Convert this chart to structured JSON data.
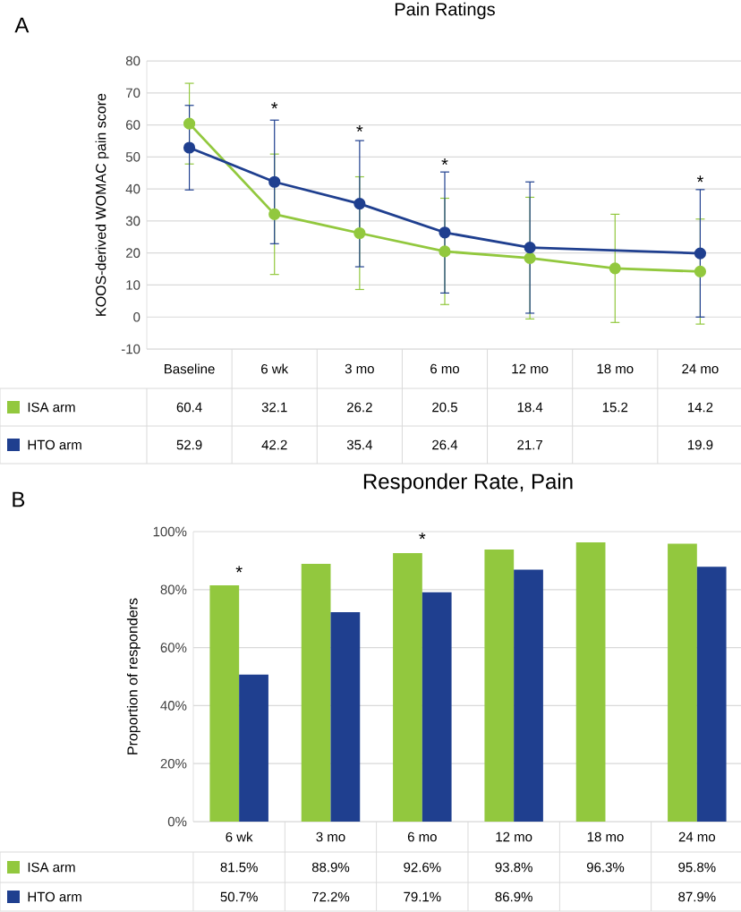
{
  "chart_data": [
    {
      "type": "line",
      "title": "Pain Ratings",
      "ylabel": "KOOS-derived WOMAC pain score",
      "categories": [
        "Baseline",
        "6 wk",
        "3 mo",
        "6 mo",
        "12 mo",
        "18 mo",
        "24 mo"
      ],
      "series": [
        {
          "name": "ISA arm",
          "color": "#92c83e",
          "values": [
            60.4,
            32.1,
            26.2,
            20.5,
            18.4,
            15.2,
            14.2
          ],
          "errors": [
            12.6,
            18.8,
            17.6,
            16.6,
            19.0,
            16.9,
            16.4
          ]
        },
        {
          "name": "HTO arm",
          "color": "#1f3f8f",
          "values": [
            52.9,
            42.2,
            35.4,
            26.4,
            21.7,
            null,
            19.9
          ],
          "errors": [
            13.2,
            19.3,
            19.7,
            18.9,
            20.5,
            null,
            19.9
          ]
        }
      ],
      "ylim": [
        -10,
        80
      ],
      "yticks": [
        -10,
        0,
        10,
        20,
        30,
        40,
        50,
        60,
        70,
        80
      ],
      "grid": "y",
      "legend": "bottom",
      "marker": "circle",
      "line_style": "solid",
      "data_labels": true,
      "annotations": [
        "A",
        "*",
        "*",
        "*",
        "*"
      ]
    },
    {
      "type": "bar",
      "title": "Responder Rate, Pain",
      "ylabel": "Proportion of responders",
      "categories": [
        "6 wk",
        "3 mo",
        "6 mo",
        "12 mo",
        "18 mo",
        "24 mo"
      ],
      "series": [
        {
          "name": "ISA arm",
          "color": "#92c83e",
          "values": [
            81.5,
            88.9,
            92.6,
            93.8,
            96.3,
            95.8
          ],
          "value_labels": [
            "81.5%",
            "88.9%",
            "92.6%",
            "93.8%",
            "96.3%",
            "95.8%"
          ]
        },
        {
          "name": "HTO arm",
          "color": "#1f3f8f",
          "values": [
            50.7,
            72.2,
            79.1,
            86.9,
            null,
            87.9
          ],
          "value_labels": [
            "50.7%",
            "72.2%",
            "79.1%",
            "86.9%",
            null,
            "87.9%"
          ]
        }
      ],
      "ylim": [
        0,
        100
      ],
      "yticks": [
        {
          "value": 0,
          "label": "0%"
        },
        {
          "value": 20,
          "label": "20%"
        },
        {
          "value": 40,
          "label": "40%"
        },
        {
          "value": 60,
          "label": "60%"
        },
        {
          "value": 80,
          "label": "80%"
        },
        {
          "value": 100,
          "label": "100%"
        }
      ],
      "grid": "y",
      "legend": "bottom",
      "annotations": [
        "B",
        "*",
        "*"
      ]
    }
  ]
}
